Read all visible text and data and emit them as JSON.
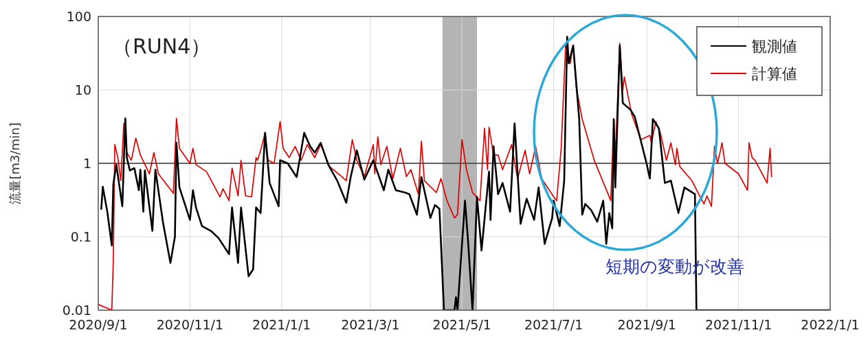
{
  "chart_data": {
    "type": "line",
    "title": "（RUN4）",
    "ylabel": "流量[m3/min]",
    "annotations": [
      "短期の変動が改善"
    ],
    "log": true,
    "grid": true,
    "legend": "top right",
    "xlim": [
      "2020-09-01",
      "2022-01-01"
    ],
    "xticks": [
      {
        "value": "2020-09-01",
        "label": "2020/9/1"
      },
      {
        "value": "2020-11-01",
        "label": "2020/11/1"
      },
      {
        "value": "2021-01-01",
        "label": "2021/1/1"
      },
      {
        "value": "2021-03-01",
        "label": "2021/3/1"
      },
      {
        "value": "2021-05-01",
        "label": "2021/5/1"
      },
      {
        "value": "2021-07-01",
        "label": "2021/7/1"
      },
      {
        "value": "2021-09-01",
        "label": "2021/9/1"
      },
      {
        "value": "2021-11-01",
        "label": "2021/11/1"
      },
      {
        "value": "2022-01-01",
        "label": "2022/1/1"
      }
    ],
    "ylim": [
      0.01,
      100
    ],
    "yticks": [
      0.01,
      0.1,
      1,
      10,
      100
    ],
    "ref_lines": [
      {
        "axis": "y",
        "value": 1,
        "color": "#333333"
      }
    ],
    "bands": [
      {
        "axis": "x",
        "from": "2021-04-18",
        "to": "2021-05-11",
        "color": "#b4b4b4"
      }
    ],
    "series": [
      {
        "name": "観測値",
        "color": "#000000",
        "x": [
          "2020-09-03",
          "2020-09-04",
          "2020-09-07",
          "2020-09-10",
          "2020-09-11",
          "2020-09-13",
          "2020-09-17",
          "2020-09-19",
          "2020-09-20",
          "2020-09-22",
          "2020-09-25",
          "2020-09-28",
          "2020-09-29",
          "2020-10-01",
          "2020-10-02",
          "2020-10-07",
          "2020-10-09",
          "2020-10-14",
          "2020-10-19",
          "2020-10-22",
          "2020-10-23",
          "2020-10-25",
          "2020-11-01",
          "2020-11-03",
          "2020-11-05",
          "2020-11-09",
          "2020-11-15",
          "2020-11-20",
          "2020-11-27",
          "2020-11-29",
          "2020-12-03",
          "2020-12-05",
          "2020-12-10",
          "2020-12-13",
          "2020-12-15",
          "2020-12-18",
          "2020-12-21",
          "2020-12-24",
          "2020-12-30",
          "2020-12-31",
          "2021-01-05",
          "2021-01-11",
          "2021-01-16",
          "2021-01-20",
          "2021-01-23",
          "2021-01-27",
          "2021-02-01",
          "2021-02-07",
          "2021-02-13",
          "2021-02-16",
          "2021-02-20",
          "2021-02-25",
          "2021-03-03",
          "2021-03-10",
          "2021-03-13",
          "2021-03-18",
          "2021-03-24",
          "2021-03-27",
          "2021-04-01",
          "2021-04-04",
          "2021-04-10",
          "2021-04-13",
          "2021-04-16",
          "2021-04-19",
          "2021-04-26",
          "2021-04-27",
          "2021-04-28",
          "2021-05-03",
          "2021-05-05",
          "2021-05-08",
          "2021-05-11",
          "2021-05-14",
          "2021-05-19",
          "2021-05-20",
          "2021-05-22",
          "2021-05-25",
          "2021-05-28",
          "2021-06-02",
          "2021-06-05",
          "2021-06-09",
          "2021-06-13",
          "2021-06-18",
          "2021-06-21",
          "2021-06-25",
          "2021-06-30",
          "2021-07-01",
          "2021-07-05",
          "2021-07-08",
          "2021-07-10",
          "2021-07-11",
          "2021-07-14",
          "2021-07-18",
          "2021-07-20",
          "2021-07-22",
          "2021-07-26",
          "2021-07-30",
          "2021-08-03",
          "2021-08-05",
          "2021-08-07",
          "2021-08-09",
          "2021-08-10",
          "2021-08-11",
          "2021-08-14",
          "2021-08-16",
          "2021-08-21",
          "2021-08-24",
          "2021-09-01",
          "2021-09-03",
          "2021-09-05",
          "2021-09-09",
          "2021-09-13",
          "2021-09-17",
          "2021-09-22",
          "2021-09-26",
          "2021-10-03",
          "2021-10-04",
          "2022-01-01"
        ],
        "values": [
          0.24,
          0.48,
          0.22,
          0.076,
          0.52,
          0.96,
          0.26,
          4.1,
          1.2,
          0.8,
          0.86,
          0.43,
          0.82,
          0.22,
          0.8,
          0.12,
          0.82,
          0.16,
          0.044,
          0.1,
          1.9,
          0.47,
          0.17,
          0.43,
          0.25,
          0.14,
          0.12,
          0.096,
          0.058,
          0.25,
          0.044,
          0.25,
          0.029,
          0.036,
          0.25,
          0.21,
          2.6,
          0.54,
          0.26,
          1.1,
          1.0,
          0.65,
          2.6,
          1.7,
          1.4,
          1.9,
          0.96,
          0.58,
          0.29,
          0.66,
          1.5,
          0.6,
          1.1,
          0.43,
          0.82,
          0.43,
          0.4,
          0.38,
          0.2,
          0.65,
          0.18,
          0.27,
          0.24,
          0.01,
          0.01,
          0.015,
          0.01,
          0.31,
          0.09,
          0.01,
          0.35,
          0.065,
          0.77,
          0.17,
          1.7,
          0.38,
          0.54,
          0.22,
          3.5,
          0.15,
          0.33,
          0.17,
          0.47,
          0.08,
          0.18,
          0.31,
          0.14,
          0.58,
          53,
          23,
          40,
          4.0,
          0.2,
          0.28,
          0.23,
          0.16,
          0.31,
          0.08,
          0.21,
          0.13,
          4.0,
          0.47,
          40,
          6.6,
          5.4,
          4.3,
          0.96,
          0.62,
          4.0,
          3.0,
          0.54,
          0.58,
          0.21,
          0.47,
          0.38,
          0.01,
          0.01
        ]
      },
      {
        "name": "計算値",
        "color": "#e00000",
        "x": [
          "2020-09-01",
          "2020-09-10",
          "2020-09-11",
          "2020-09-12",
          "2020-09-14",
          "2020-09-16",
          "2020-09-18",
          "2020-09-20",
          "2020-09-23",
          "2020-09-26",
          "2020-09-29",
          "2020-10-05",
          "2020-10-08",
          "2020-10-11",
          "2020-10-21",
          "2020-10-23",
          "2020-10-25",
          "2020-11-01",
          "2020-11-03",
          "2020-11-05",
          "2020-11-12",
          "2020-11-21",
          "2020-11-23",
          "2020-11-27",
          "2020-11-29",
          "2020-12-03",
          "2020-12-05",
          "2020-12-08",
          "2020-12-12",
          "2020-12-15",
          "2020-12-16",
          "2020-12-18",
          "2020-12-21",
          "2020-12-23",
          "2020-12-27",
          "2020-12-31",
          "2021-01-02",
          "2021-01-06",
          "2021-01-10",
          "2021-01-14",
          "2021-01-18",
          "2021-01-23",
          "2021-01-27",
          "2021-02-02",
          "2021-02-10",
          "2021-02-13",
          "2021-02-17",
          "2021-02-20",
          "2021-02-25",
          "2021-03-03",
          "2021-03-04",
          "2021-03-06",
          "2021-03-08",
          "2021-03-12",
          "2021-03-16",
          "2021-03-21",
          "2021-03-25",
          "2021-03-28",
          "2021-04-02",
          "2021-04-04",
          "2021-04-06",
          "2021-04-14",
          "2021-04-17",
          "2021-04-21",
          "2021-04-26",
          "2021-04-28",
          "2021-05-01",
          "2021-05-04",
          "2021-05-08",
          "2021-05-13",
          "2021-05-16",
          "2021-05-18",
          "2021-05-19",
          "2021-05-22",
          "2021-05-25",
          "2021-05-28",
          "2021-06-03",
          "2021-06-07",
          "2021-06-12",
          "2021-06-15",
          "2021-06-19",
          "2021-06-23",
          "2021-07-01",
          "2021-07-03",
          "2021-07-06",
          "2021-07-09",
          "2021-07-12",
          "2021-07-14",
          "2021-07-16",
          "2021-07-20",
          "2021-07-28",
          "2021-08-08",
          "2021-08-10",
          "2021-08-11",
          "2021-08-14",
          "2021-08-16",
          "2021-08-17",
          "2021-08-22",
          "2021-08-28",
          "2021-09-03",
          "2021-09-04",
          "2021-09-07",
          "2021-09-10",
          "2021-09-14",
          "2021-09-17",
          "2021-09-20",
          "2021-09-21",
          "2021-09-23",
          "2021-10-01",
          "2021-10-05",
          "2021-10-09",
          "2021-10-11",
          "2021-10-14",
          "2021-10-16",
          "2021-10-18",
          "2021-10-20",
          "2021-10-21",
          "2021-10-23",
          "2021-11-01",
          "2021-11-07",
          "2021-11-08",
          "2021-11-10",
          "2021-11-12",
          "2021-11-20",
          "2021-11-22",
          "2021-11-23"
        ],
        "values": [
          0.012,
          0.01,
          0.047,
          1.8,
          1.2,
          0.58,
          3.5,
          1.4,
          1.1,
          2.2,
          1.3,
          0.72,
          1.4,
          0.72,
          0.39,
          4.1,
          1.6,
          1.0,
          1.6,
          0.96,
          0.77,
          0.35,
          0.45,
          0.31,
          0.86,
          0.36,
          1.1,
          0.36,
          0.35,
          1.2,
          1.1,
          1.5,
          2.6,
          1.1,
          1.0,
          3.7,
          1.6,
          1.2,
          1.7,
          1.1,
          1.8,
          1.2,
          1.8,
          0.9,
          0.66,
          0.58,
          2.1,
          1.1,
          0.66,
          1.8,
          0.72,
          2.3,
          0.96,
          1.7,
          0.62,
          1.6,
          0.66,
          0.82,
          0.38,
          2.0,
          0.58,
          0.4,
          0.62,
          0.31,
          0.18,
          0.2,
          2.1,
          0.82,
          0.4,
          0.31,
          3.0,
          0.82,
          3.1,
          1.3,
          1.3,
          0.82,
          1.8,
          0.62,
          1.5,
          0.72,
          1.7,
          0.62,
          0.35,
          0.31,
          1.6,
          43,
          23,
          41,
          11,
          4.0,
          1.1,
          0.31,
          4.0,
          1.2,
          43,
          10,
          15,
          4.6,
          2.1,
          2.4,
          1.9,
          3.7,
          2.6,
          1.1,
          1.9,
          0.96,
          1.6,
          0.9,
          0.58,
          0.4,
          0.28,
          0.36,
          0.26,
          1.7,
          1.0,
          1.5,
          1.9,
          1.0,
          0.72,
          0.43,
          1.9,
          1.2,
          1.1,
          0.54,
          1.6,
          0.66
        ]
      }
    ]
  }
}
